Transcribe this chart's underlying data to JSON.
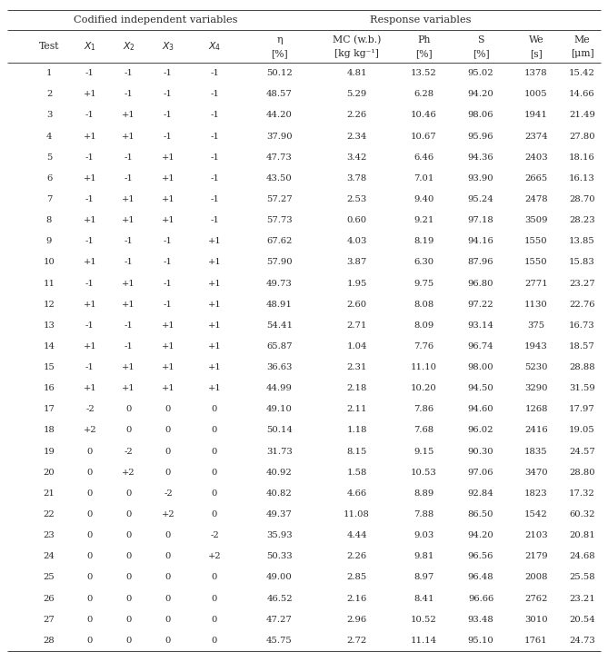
{
  "title_left": "Codified independent variables",
  "title_right": "Response variables",
  "col_headers_line1": [
    "Test",
    "X_1",
    "X_2",
    "X_3",
    "X_4",
    "η",
    "MC (w.b.)",
    "Ph",
    "S",
    "We",
    "Me"
  ],
  "col_headers_line2": [
    "",
    "",
    "",
    "",
    "",
    "[%]",
    "[kg kg⁻¹]",
    "[%]",
    "[%]",
    "[s]",
    "[μm]"
  ],
  "rows": [
    [
      "1",
      "-1",
      "-1",
      "-1",
      "-1",
      "50.12",
      "4.81",
      "13.52",
      "95.02",
      "1378",
      "15.42"
    ],
    [
      "2",
      "+1",
      "-1",
      "-1",
      "-1",
      "48.57",
      "5.29",
      "6.28",
      "94.20",
      "1005",
      "14.66"
    ],
    [
      "3",
      "-1",
      "+1",
      "-1",
      "-1",
      "44.20",
      "2.26",
      "10.46",
      "98.06",
      "1941",
      "21.49"
    ],
    [
      "4",
      "+1",
      "+1",
      "-1",
      "-1",
      "37.90",
      "2.34",
      "10.67",
      "95.96",
      "2374",
      "27.80"
    ],
    [
      "5",
      "-1",
      "-1",
      "+1",
      "-1",
      "47.73",
      "3.42",
      "6.46",
      "94.36",
      "2403",
      "18.16"
    ],
    [
      "6",
      "+1",
      "-1",
      "+1",
      "-1",
      "43.50",
      "3.78",
      "7.01",
      "93.90",
      "2665",
      "16.13"
    ],
    [
      "7",
      "-1",
      "+1",
      "+1",
      "-1",
      "57.27",
      "2.53",
      "9.40",
      "95.24",
      "2478",
      "28.70"
    ],
    [
      "8",
      "+1",
      "+1",
      "+1",
      "-1",
      "57.73",
      "0.60",
      "9.21",
      "97.18",
      "3509",
      "28.23"
    ],
    [
      "9",
      "-1",
      "-1",
      "-1",
      "+1",
      "67.62",
      "4.03",
      "8.19",
      "94.16",
      "1550",
      "13.85"
    ],
    [
      "10",
      "+1",
      "-1",
      "-1",
      "+1",
      "57.90",
      "3.87",
      "6.30",
      "87.96",
      "1550",
      "15.83"
    ],
    [
      "11",
      "-1",
      "+1",
      "-1",
      "+1",
      "49.73",
      "1.95",
      "9.75",
      "96.80",
      "2771",
      "23.27"
    ],
    [
      "12",
      "+1",
      "+1",
      "-1",
      "+1",
      "48.91",
      "2.60",
      "8.08",
      "97.22",
      "1130",
      "22.76"
    ],
    [
      "13",
      "-1",
      "-1",
      "+1",
      "+1",
      "54.41",
      "2.71",
      "8.09",
      "93.14",
      "375",
      "16.73"
    ],
    [
      "14",
      "+1",
      "-1",
      "+1",
      "+1",
      "65.87",
      "1.04",
      "7.76",
      "96.74",
      "1943",
      "18.57"
    ],
    [
      "15",
      "-1",
      "+1",
      "+1",
      "+1",
      "36.63",
      "2.31",
      "11.10",
      "98.00",
      "5230",
      "28.88"
    ],
    [
      "16",
      "+1",
      "+1",
      "+1",
      "+1",
      "44.99",
      "2.18",
      "10.20",
      "94.50",
      "3290",
      "31.59"
    ],
    [
      "17",
      "-2",
      "0",
      "0",
      "0",
      "49.10",
      "2.11",
      "7.86",
      "94.60",
      "1268",
      "17.97"
    ],
    [
      "18",
      "+2",
      "0",
      "0",
      "0",
      "50.14",
      "1.18",
      "7.68",
      "96.02",
      "2416",
      "19.05"
    ],
    [
      "19",
      "0",
      "-2",
      "0",
      "0",
      "31.73",
      "8.15",
      "9.15",
      "90.30",
      "1835",
      "24.57"
    ],
    [
      "20",
      "0",
      "+2",
      "0",
      "0",
      "40.92",
      "1.58",
      "10.53",
      "97.06",
      "3470",
      "28.80"
    ],
    [
      "21",
      "0",
      "0",
      "-2",
      "0",
      "40.82",
      "4.66",
      "8.89",
      "92.84",
      "1823",
      "17.32"
    ],
    [
      "22",
      "0",
      "0",
      "+2",
      "0",
      "49.37",
      "11.08",
      "7.88",
      "86.50",
      "1542",
      "60.32"
    ],
    [
      "23",
      "0",
      "0",
      "0",
      "-2",
      "35.93",
      "4.44",
      "9.03",
      "94.20",
      "2103",
      "20.81"
    ],
    [
      "24",
      "0",
      "0",
      "0",
      "+2",
      "50.33",
      "2.26",
      "9.81",
      "96.56",
      "2179",
      "24.68"
    ],
    [
      "25",
      "0",
      "0",
      "0",
      "0",
      "49.00",
      "2.85",
      "8.97",
      "96.48",
      "2008",
      "25.58"
    ],
    [
      "26",
      "0",
      "0",
      "0",
      "0",
      "46.52",
      "2.16",
      "8.41",
      "96.66",
      "2762",
      "23.21"
    ],
    [
      "27",
      "0",
      "0",
      "0",
      "0",
      "47.27",
      "2.96",
      "10.52",
      "93.48",
      "3010",
      "20.54"
    ],
    [
      "28",
      "0",
      "0",
      "0",
      "0",
      "45.75",
      "2.72",
      "11.14",
      "95.10",
      "1761",
      "24.73"
    ]
  ],
  "bg_color": "#ffffff",
  "text_color": "#2a2a2a",
  "line_color": "#444444",
  "font_size": 7.2,
  "header_font_size": 7.8,
  "group_header_font_size": 8.2
}
